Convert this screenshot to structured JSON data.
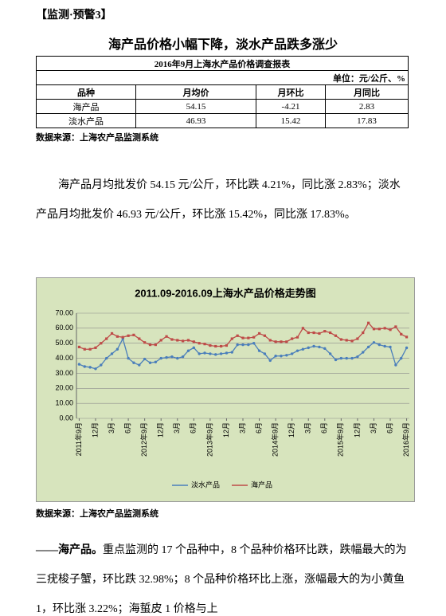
{
  "header": {
    "tag": "【监测·预警3】"
  },
  "heading": "海产品价格小幅下降，淡水产品跌多涨少",
  "table": {
    "title": "2016年9月上海水产品价格调查报表",
    "unit": "单位：元/公斤、%",
    "columns": [
      "品种",
      "月均价",
      "月环比",
      "月同比"
    ],
    "rows": [
      [
        "海产品",
        54.15,
        -4.21,
        2.83
      ],
      [
        "淡水产品",
        46.93,
        15.42,
        17.83
      ]
    ]
  },
  "source_1": "数据来源：上海农产品监测系统",
  "paragraph_1": "海产品月均批发价 54.15 元/公斤，环比跌 4.21%，同比涨 2.83%；淡水产品月均批发价 46.93 元/公斤，环比涨 15.42%，同比涨 17.83%。",
  "chart_data": {
    "type": "line",
    "title": "2011.09-2016.09上海水产品价格走势图",
    "categories": [
      "2011年9月",
      null,
      null,
      "12月",
      null,
      null,
      "3月",
      null,
      null,
      "6月",
      null,
      null,
      "2012年9月",
      null,
      null,
      "12月",
      null,
      null,
      "3月",
      null,
      null,
      "6月",
      null,
      null,
      "2013年9月",
      null,
      null,
      "12月",
      null,
      null,
      "3月",
      null,
      null,
      "6月",
      null,
      null,
      "2014年9月",
      null,
      null,
      "12月",
      null,
      null,
      "3月",
      null,
      null,
      "6月",
      null,
      null,
      "2015年9月",
      null,
      null,
      "12月",
      null,
      null,
      "3月",
      null,
      null,
      "6月",
      null,
      null,
      "2016年9月"
    ],
    "series": [
      {
        "name": "淡水产品",
        "color": "#4a7ebb",
        "values": [
          36,
          34.5,
          34,
          33,
          35.5,
          40,
          43,
          46,
          53,
          40,
          37,
          35.5,
          39.5,
          37,
          37.5,
          40,
          40.5,
          41,
          40,
          41,
          45,
          47,
          43,
          43.5,
          43,
          42.5,
          43,
          43.5,
          44,
          49,
          49,
          49,
          50,
          45,
          43,
          38.5,
          41.5,
          41.5,
          42,
          43,
          45,
          46,
          47,
          48,
          47.5,
          46.5,
          43,
          39,
          40,
          40,
          40,
          41,
          44,
          47.5,
          50.5,
          49,
          48,
          47.5,
          35.5,
          40,
          46.93
        ]
      },
      {
        "name": "海产品",
        "color": "#be4b48",
        "values": [
          47.5,
          46,
          46,
          47,
          50,
          53,
          56.5,
          54.5,
          54,
          55,
          55.5,
          53,
          50.5,
          49,
          49,
          52,
          54.5,
          52.5,
          52,
          51.5,
          52,
          51,
          50,
          49.5,
          48.5,
          48,
          48,
          48.5,
          53,
          55,
          53.5,
          53.5,
          54,
          56.5,
          55,
          52,
          51,
          51,
          51,
          53,
          54,
          60,
          57,
          57,
          56.5,
          58,
          57,
          55,
          52.5,
          52,
          51.5,
          53,
          57,
          63.5,
          59.5,
          59.5,
          60,
          59,
          61,
          56,
          54.15
        ]
      }
    ],
    "ylim": [
      0,
      70
    ],
    "yticks": [
      {
        "value": 0,
        "label": "0.00"
      },
      {
        "value": 10,
        "label": "10.00"
      },
      {
        "value": 20,
        "label": "20.00"
      },
      {
        "value": 30,
        "label": "30.00"
      },
      {
        "value": 40,
        "label": "40.00"
      },
      {
        "value": 50,
        "label": "50.00"
      },
      {
        "value": 60,
        "label": "60.00"
      },
      {
        "value": 70,
        "label": "70.00"
      }
    ],
    "grid": true,
    "legend": "bottom"
  },
  "source_2": "数据来源：上海农产品监测系统",
  "paragraph_2": {
    "lead": "——海产品。",
    "text": "重点监测的 17 个品种中，8 个品种价格环比跌，跌幅最大的为三疣梭子蟹，环比跌 32.98%；8 个品种价格环比上涨，涨幅最大的为小黄鱼 1，环比涨 3.22%；海蜇皮 1 价格与上"
  }
}
